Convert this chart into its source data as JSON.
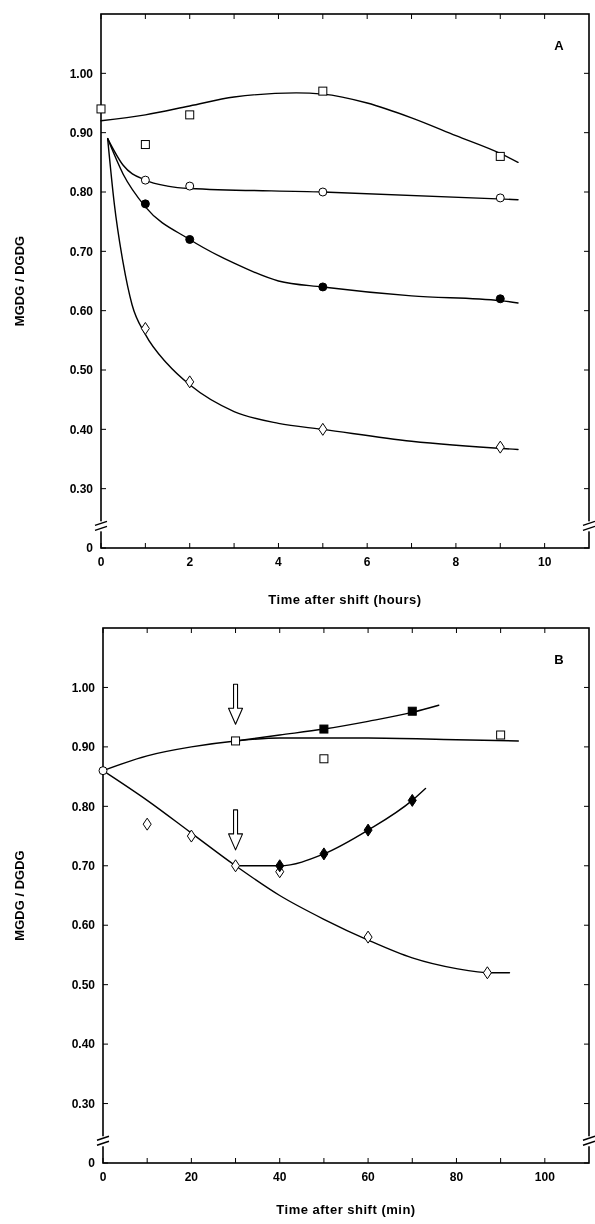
{
  "chart_data": [
    {
      "type": "scatter",
      "xlabel": "Time after shift (hours)",
      "ylabel": "MGDG / DGDG",
      "annotations": [
        "A"
      ],
      "xlim": [
        0,
        11
      ],
      "xticks": [
        0,
        {
          "value": 1,
          "label": null
        },
        2,
        {
          "value": 3,
          "label": null
        },
        4,
        {
          "value": 5,
          "label": null
        },
        6,
        {
          "value": 7,
          "label": null
        },
        8,
        {
          "value": 9,
          "label": null
        },
        10
      ],
      "ylim": [
        0.2,
        1.1
      ],
      "yticks": [
        {
          "value": 0.2,
          "label": "0"
        },
        {
          "value": 0.3,
          "label": "0.30"
        },
        {
          "value": 0.4,
          "label": "0.40"
        },
        {
          "value": 0.5,
          "label": "0.50"
        },
        {
          "value": 0.6,
          "label": "0.60"
        },
        {
          "value": 0.7,
          "label": "0.70"
        },
        {
          "value": 0.8,
          "label": "0.80"
        },
        {
          "value": 0.9,
          "label": "0.90"
        },
        {
          "value": 1.0,
          "label": "1.00"
        }
      ],
      "series": [
        {
          "type": "line",
          "color": "#000000",
          "marker": "none",
          "line_style": "solid",
          "x": [
            0,
            1,
            2,
            3,
            4.4,
            5,
            6,
            7,
            8,
            9,
            9.4
          ],
          "values": [
            0.92,
            0.93,
            0.945,
            0.96,
            0.967,
            0.965,
            0.95,
            0.925,
            0.895,
            0.865,
            0.85
          ]
        },
        {
          "type": "line",
          "color": "#000000",
          "marker": "none",
          "line_style": "solid",
          "x": [
            0.15,
            0.5,
            1,
            1.5,
            2,
            5,
            9.4
          ],
          "values": [
            0.89,
            0.845,
            0.82,
            0.81,
            0.806,
            0.8,
            0.787
          ]
        },
        {
          "type": "line",
          "color": "#000000",
          "marker": "none",
          "line_style": "solid",
          "x": [
            0.15,
            0.5,
            1,
            2,
            3,
            4,
            5,
            7,
            9,
            9.4
          ],
          "values": [
            0.89,
            0.83,
            0.775,
            0.72,
            0.68,
            0.65,
            0.64,
            0.625,
            0.617,
            0.613
          ]
        },
        {
          "type": "line",
          "color": "#000000",
          "marker": "none",
          "line_style": "solid",
          "x": [
            0.15,
            0.3,
            0.5,
            0.7,
            1,
            1.5,
            2,
            3,
            4,
            5,
            7,
            9.4
          ],
          "values": [
            0.89,
            0.78,
            0.68,
            0.61,
            0.56,
            0.51,
            0.475,
            0.43,
            0.41,
            0.4,
            0.38,
            0.366
          ]
        },
        {
          "color": "#ffffff",
          "marker": "square",
          "x": [
            0,
            1,
            2,
            5,
            9
          ],
          "values": [
            0.94,
            0.88,
            0.93,
            0.97,
            0.86
          ]
        },
        {
          "color": "#ffffff",
          "marker": "circle",
          "x": [
            1,
            2,
            5,
            9
          ],
          "values": [
            0.82,
            0.81,
            0.8,
            0.79
          ]
        },
        {
          "color": "#000000",
          "marker": "circle",
          "x": [
            1,
            2,
            5,
            9
          ],
          "values": [
            0.78,
            0.72,
            0.64,
            0.62
          ]
        },
        {
          "color": "#ffffff",
          "marker": "diamond",
          "x": [
            1,
            2,
            5,
            9
          ],
          "values": [
            0.57,
            0.48,
            0.4,
            0.37
          ]
        }
      ]
    },
    {
      "type": "scatter",
      "xlabel": "Time after shift (min)",
      "ylabel": "MGDG / DGDG",
      "annotations": [
        "B"
      ],
      "xlim": [
        0,
        110
      ],
      "xticks": [
        0,
        {
          "value": 10,
          "label": null
        },
        20,
        {
          "value": 30,
          "label": null
        },
        40,
        {
          "value": 50,
          "label": null
        },
        60,
        {
          "value": 70,
          "label": null
        },
        80,
        {
          "value": 90,
          "label": null
        },
        100
      ],
      "ylim": [
        0.2,
        1.1
      ],
      "yticks": [
        {
          "value": 0.2,
          "label": "0"
        },
        {
          "value": 0.3,
          "label": "0.30"
        },
        {
          "value": 0.4,
          "label": "0.40"
        },
        {
          "value": 0.5,
          "label": "0.50"
        },
        {
          "value": 0.6,
          "label": "0.60"
        },
        {
          "value": 0.7,
          "label": "0.70"
        },
        {
          "value": 0.8,
          "label": "0.80"
        },
        {
          "value": 0.9,
          "label": "0.90"
        },
        {
          "value": 1.0,
          "label": "1.00"
        }
      ],
      "series": [
        {
          "type": "line",
          "color": "#000000",
          "marker": "none",
          "line_style": "solid",
          "x": [
            0,
            10,
            20,
            30,
            40,
            60,
            80,
            94
          ],
          "values": [
            0.86,
            0.885,
            0.9,
            0.91,
            0.915,
            0.915,
            0.912,
            0.91
          ]
        },
        {
          "type": "line",
          "color": "#000000",
          "marker": "none",
          "line_style": "solid",
          "x": [
            30,
            40,
            50,
            60,
            70,
            76
          ],
          "values": [
            0.91,
            0.92,
            0.93,
            0.943,
            0.958,
            0.97
          ]
        },
        {
          "type": "line",
          "color": "#000000",
          "marker": "none",
          "line_style": "solid",
          "x": [
            0,
            10,
            20,
            30,
            40,
            50,
            60,
            70,
            80,
            88,
            92
          ],
          "values": [
            0.86,
            0.81,
            0.755,
            0.7,
            0.65,
            0.61,
            0.575,
            0.545,
            0.527,
            0.52,
            0.52
          ]
        },
        {
          "type": "line",
          "color": "#000000",
          "marker": "none",
          "line_style": "solid",
          "x": [
            31,
            40,
            50,
            60,
            70,
            73
          ],
          "values": [
            0.7,
            0.7,
            0.72,
            0.76,
            0.81,
            0.83
          ]
        },
        {
          "color": "#ffffff",
          "marker": "circle",
          "x": [
            0
          ],
          "values": [
            0.86
          ]
        },
        {
          "color": "#ffffff",
          "marker": "square",
          "x": [
            30,
            50,
            90
          ],
          "values": [
            0.91,
            0.88,
            0.92
          ]
        },
        {
          "color": "#000000",
          "marker": "square",
          "x": [
            50,
            70
          ],
          "values": [
            0.93,
            0.96
          ]
        },
        {
          "color": "#ffffff",
          "marker": "diamond",
          "x": [
            10,
            20,
            30,
            40,
            60,
            87
          ],
          "values": [
            0.77,
            0.75,
            0.7,
            0.69,
            0.58,
            0.52
          ]
        },
        {
          "color": "#000000",
          "marker": "diamond",
          "x": [
            40,
            50,
            60,
            70
          ],
          "values": [
            0.7,
            0.72,
            0.76,
            0.81
          ]
        }
      ]
    }
  ]
}
